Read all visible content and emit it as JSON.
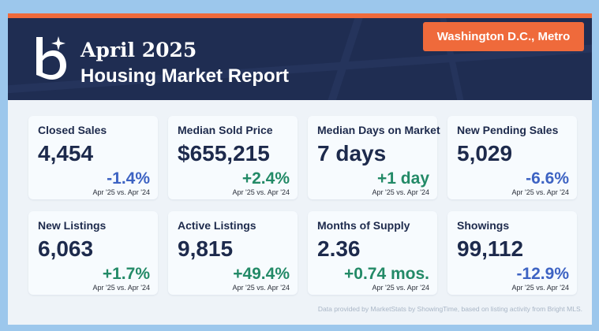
{
  "header": {
    "title_month": "April 2025",
    "title_report": "Housing Market Report",
    "region": "Washington D.C., Metro",
    "accent_color": "#ef6a3b",
    "background_color": "#1f2d52",
    "logo_icon": "b-star-logo-icon"
  },
  "metrics": [
    {
      "label": "Closed Sales",
      "value": "4,454",
      "change": "-1.4%",
      "direction": "negative",
      "period": "Apr '25 vs. Apr '24"
    },
    {
      "label": "Median Sold Price",
      "value": "$655,215",
      "change": "+2.4%",
      "direction": "positive",
      "period": "Apr '25 vs. Apr '24"
    },
    {
      "label": "Median Days on Market",
      "value": "7 days",
      "change": "+1 day",
      "direction": "positive",
      "period": "Apr '25 vs. Apr '24"
    },
    {
      "label": "New Pending Sales",
      "value": "5,029",
      "change": "-6.6%",
      "direction": "negative",
      "period": "Apr '25 vs. Apr '24"
    },
    {
      "label": "New Listings",
      "value": "6,063",
      "change": "+1.7%",
      "direction": "positive",
      "period": "Apr '25 vs. Apr '24"
    },
    {
      "label": "Active Listings",
      "value": "9,815",
      "change": "+49.4%",
      "direction": "positive",
      "period": "Apr '25 vs. Apr '24"
    },
    {
      "label": "Months of Supply",
      "value": "2.36",
      "change": "+0.74 mos.",
      "direction": "positive",
      "period": "Apr '25 vs. Apr '24"
    },
    {
      "label": "Showings",
      "value": "99,112",
      "change": "-12.9%",
      "direction": "negative",
      "period": "Apr '25 vs. Apr '24"
    }
  ],
  "colors": {
    "positive": "#238a67",
    "negative": "#3d63c3"
  },
  "footnote": "Data provided by MarketStats by ShowingTime, based on listing activity from Bright MLS."
}
